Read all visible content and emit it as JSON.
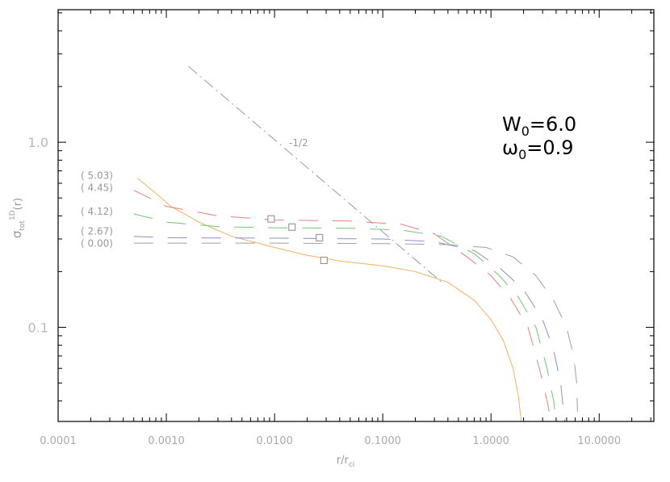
{
  "chart_data": {
    "type": "line",
    "xlabel": "r/r",
    "xlabel_sub": "ci",
    "ylabel": "σ",
    "ylabel_sub": "tot",
    "ylabel_sup": "1D",
    "ylabel_tail": "(r)",
    "x_scale": "log",
    "y_scale": "log",
    "xlim": [
      0.0001,
      32
    ],
    "ylim": [
      0.031,
      5.2
    ],
    "x_ticks": [
      0.0001,
      0.001,
      0.01,
      0.1,
      1,
      10
    ],
    "x_tick_labels": [
      "0.0001",
      "0.0010",
      "0.0100",
      "0.1000",
      "1.0000",
      "10.0000"
    ],
    "y_ticks": [
      0.1,
      1.0
    ],
    "y_tick_labels": [
      "0.1",
      "1.0"
    ],
    "grid": false,
    "annotations": {
      "line1_main": "W",
      "line1_sub": "0",
      "line1_rest": "=6.0",
      "line2_main": "ω",
      "line2_sub": "0",
      "line2_rest": "=0.9",
      "slope_label": "-1/2"
    },
    "reference_line": {
      "slope": -0.5,
      "style": "dash-dot",
      "color": "#999999",
      "points": [
        [
          0.0016,
          2.57
        ],
        [
          0.36,
          0.173
        ]
      ]
    },
    "series": [
      {
        "label": "( 5.03)",
        "color": "#f5b060",
        "style": "solid",
        "points": [
          [
            0.00054,
            0.64
          ],
          [
            0.0008,
            0.53
          ],
          [
            0.0011,
            0.45
          ],
          [
            0.002,
            0.37
          ],
          [
            0.004,
            0.31
          ],
          [
            0.01,
            0.27
          ],
          [
            0.02,
            0.245
          ],
          [
            0.04,
            0.228
          ],
          [
            0.1,
            0.215
          ],
          [
            0.2,
            0.2
          ],
          [
            0.4,
            0.175
          ],
          [
            0.7,
            0.14
          ],
          [
            1.0,
            0.11
          ],
          [
            1.3,
            0.085
          ],
          [
            1.6,
            0.06
          ],
          [
            1.8,
            0.042
          ],
          [
            1.9,
            0.031
          ]
        ],
        "marker": [
          0.0286,
          0.23
        ]
      },
      {
        "label": "( 4.45)",
        "color": "#e88080",
        "style": "dashed",
        "points": [
          [
            0.0005,
            0.55
          ],
          [
            0.001,
            0.45
          ],
          [
            0.003,
            0.4
          ],
          [
            0.01,
            0.38
          ],
          [
            0.05,
            0.375
          ],
          [
            0.15,
            0.36
          ],
          [
            0.3,
            0.32
          ],
          [
            0.6,
            0.24
          ],
          [
            1.0,
            0.19
          ],
          [
            1.5,
            0.145
          ],
          [
            2.2,
            0.1
          ],
          [
            2.8,
            0.06
          ],
          [
            3.3,
            0.04
          ],
          [
            3.6,
            0.031
          ]
        ],
        "marker": [
          0.0093,
          0.385
        ]
      },
      {
        "label": "( 4.12)",
        "color": "#70c870",
        "style": "dashed",
        "points": [
          [
            0.0005,
            0.41
          ],
          [
            0.001,
            0.37
          ],
          [
            0.003,
            0.35
          ],
          [
            0.01,
            0.345
          ],
          [
            0.05,
            0.343
          ],
          [
            0.15,
            0.335
          ],
          [
            0.35,
            0.31
          ],
          [
            0.7,
            0.25
          ],
          [
            1.2,
            0.19
          ],
          [
            1.8,
            0.145
          ],
          [
            2.6,
            0.1
          ],
          [
            3.3,
            0.06
          ],
          [
            3.8,
            0.04
          ],
          [
            4.0,
            0.031
          ]
        ],
        "marker": [
          0.0145,
          0.348
        ]
      },
      {
        "label": "( 2.67)",
        "color": "#8890c8",
        "style": "dashed",
        "points": [
          [
            0.0005,
            0.31
          ],
          [
            0.001,
            0.305
          ],
          [
            0.01,
            0.303
          ],
          [
            0.1,
            0.3
          ],
          [
            0.3,
            0.29
          ],
          [
            0.7,
            0.26
          ],
          [
            1.2,
            0.21
          ],
          [
            2.0,
            0.16
          ],
          [
            3.0,
            0.11
          ],
          [
            3.8,
            0.075
          ],
          [
            4.4,
            0.05
          ],
          [
            4.8,
            0.031
          ]
        ],
        "marker": [
          0.026,
          0.305
        ]
      },
      {
        "label": "( 0.00)",
        "color": "#a0a0a0",
        "style": "dashed",
        "points": [
          [
            0.0005,
            0.285
          ],
          [
            0.01,
            0.285
          ],
          [
            0.1,
            0.283
          ],
          [
            0.4,
            0.28
          ],
          [
            0.9,
            0.27
          ],
          [
            1.6,
            0.24
          ],
          [
            2.6,
            0.19
          ],
          [
            3.8,
            0.14
          ],
          [
            5.0,
            0.1
          ],
          [
            5.8,
            0.07
          ],
          [
            6.2,
            0.05
          ],
          [
            6.3,
            0.035
          ]
        ]
      }
    ]
  }
}
